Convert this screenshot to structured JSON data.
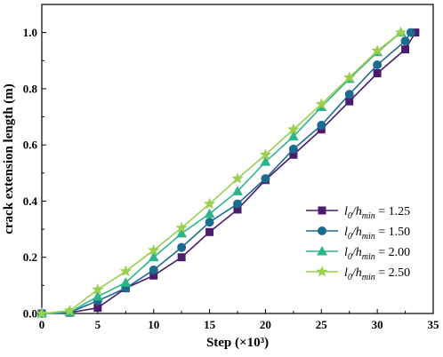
{
  "chart_data": {
    "type": "line",
    "xlabel": "Step (×10³)",
    "ylabel": "crack extension length (m)",
    "xlim": [
      0,
      35
    ],
    "ylim": [
      0,
      1.1
    ],
    "xticks": [
      "0",
      "5",
      "10",
      "15",
      "20",
      "25",
      "30",
      "35"
    ],
    "yticks": [
      "0.0",
      "0.2",
      "0.4",
      "0.6",
      "0.8",
      "1.0"
    ],
    "grid": false,
    "legend_position": "bottom-right",
    "series": [
      {
        "name": "l0/hmin = 1.25",
        "legend": {
          "main": "l",
          "sub1": "0",
          "sep": "/h",
          "sub2": "min",
          "value": " = 1.25"
        },
        "color": "#4B1C6E",
        "marker": "square",
        "x": [
          0,
          2.5,
          5,
          7.5,
          10,
          12.5,
          15,
          17.5,
          20,
          22.5,
          25,
          27.5,
          30,
          32.5,
          33.4
        ],
        "y": [
          0,
          0.003,
          0.02,
          0.09,
          0.135,
          0.2,
          0.29,
          0.37,
          0.475,
          0.565,
          0.655,
          0.755,
          0.855,
          0.94,
          1.0
        ]
      },
      {
        "name": "l0/hmin = 1.50",
        "legend": {
          "main": "l",
          "sub1": "0",
          "sep": "/h",
          "sub2": "min",
          "value": " = 1.50"
        },
        "color": "#1B6B8F",
        "marker": "circle",
        "x": [
          0,
          2.5,
          5,
          7.5,
          10,
          12.5,
          15,
          17.5,
          20,
          22.5,
          25,
          27.5,
          30,
          32.5,
          33
        ],
        "y": [
          0,
          0.004,
          0.045,
          0.09,
          0.155,
          0.235,
          0.325,
          0.39,
          0.48,
          0.585,
          0.67,
          0.78,
          0.885,
          0.97,
          1.0
        ]
      },
      {
        "name": "l0/hmin = 2.00",
        "legend": {
          "main": "l",
          "sub1": "0",
          "sep": "/h",
          "sub2": "min",
          "value": " = 2.00"
        },
        "color": "#2DB58A",
        "marker": "triangle",
        "x": [
          0,
          2.5,
          5,
          7.5,
          10,
          12.5,
          15,
          17.5,
          20,
          22.5,
          25,
          27.5,
          30,
          32.1
        ],
        "y": [
          0,
          0.005,
          0.06,
          0.11,
          0.2,
          0.285,
          0.355,
          0.435,
          0.54,
          0.63,
          0.735,
          0.835,
          0.93,
          1.0
        ]
      },
      {
        "name": "l0/hmin = 2.50",
        "legend": {
          "main": "l",
          "sub1": "0",
          "sep": "/h",
          "sub2": "min",
          "value": " = 2.50"
        },
        "color": "#9BCF4E",
        "marker": "star",
        "x": [
          0,
          2.5,
          5,
          7.5,
          10,
          12.5,
          15,
          17.5,
          20,
          22.5,
          25,
          27.5,
          30,
          32.1
        ],
        "y": [
          0,
          0.01,
          0.085,
          0.15,
          0.225,
          0.305,
          0.39,
          0.48,
          0.565,
          0.655,
          0.745,
          0.84,
          0.935,
          1.0
        ]
      }
    ]
  }
}
